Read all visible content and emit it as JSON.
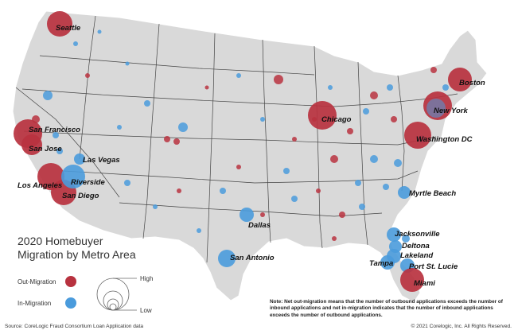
{
  "title": {
    "line1": "2020 Homebuyer",
    "line2": "Migration by Metro Area"
  },
  "legend": {
    "out_label": "Out-Migration",
    "in_label": "In-Migration",
    "high_label": "High",
    "low_label": "Low",
    "out_color": "#b8323f",
    "in_color": "#4a9bdc"
  },
  "note": "Note: Net out-migration means that the number of outbound applications exceeds the number of inbound applications and net in-migration indicates that the number of inbound applications exceeds the number of outbound applications.",
  "footer": {
    "source": "Source: CoreLogic Fraud Consortium Loan Application data",
    "copyright": "© 2021 Corelogic, Inc. All Rights Reserved."
  },
  "map": {
    "land_color": "#d9d9d9",
    "border_color": "#ffffff",
    "state_border_color": "#3a3a3a"
  },
  "cities": [
    {
      "name": "Seattle",
      "type": "out",
      "size": "large"
    },
    {
      "name": "San Francisco",
      "type": "out",
      "size": "large"
    },
    {
      "name": "San Jose",
      "type": "out",
      "size": "large"
    },
    {
      "name": "Los Angeles",
      "type": "out",
      "size": "large"
    },
    {
      "name": "San Diego",
      "type": "out",
      "size": "large"
    },
    {
      "name": "Las Vegas",
      "type": "in",
      "size": "medium"
    },
    {
      "name": "Riverside",
      "type": "in",
      "size": "large"
    },
    {
      "name": "Chicago",
      "type": "out",
      "size": "large"
    },
    {
      "name": "Boston",
      "type": "out",
      "size": "large"
    },
    {
      "name": "New York",
      "type": "out",
      "size": "large"
    },
    {
      "name": "Washington DC",
      "type": "out",
      "size": "large"
    },
    {
      "name": "Myrtle Beach",
      "type": "in",
      "size": "medium"
    },
    {
      "name": "Dallas",
      "type": "in",
      "size": "medium"
    },
    {
      "name": "San Antonio",
      "type": "in",
      "size": "medium"
    },
    {
      "name": "Jacksonville",
      "type": "in",
      "size": "medium"
    },
    {
      "name": "Deltona",
      "type": "in",
      "size": "medium"
    },
    {
      "name": "Lakeland",
      "type": "in",
      "size": "medium"
    },
    {
      "name": "Tampa",
      "type": "in",
      "size": "medium"
    },
    {
      "name": "Port St. Lucie",
      "type": "in",
      "size": "medium"
    },
    {
      "name": "Miami",
      "type": "out",
      "size": "large"
    }
  ]
}
